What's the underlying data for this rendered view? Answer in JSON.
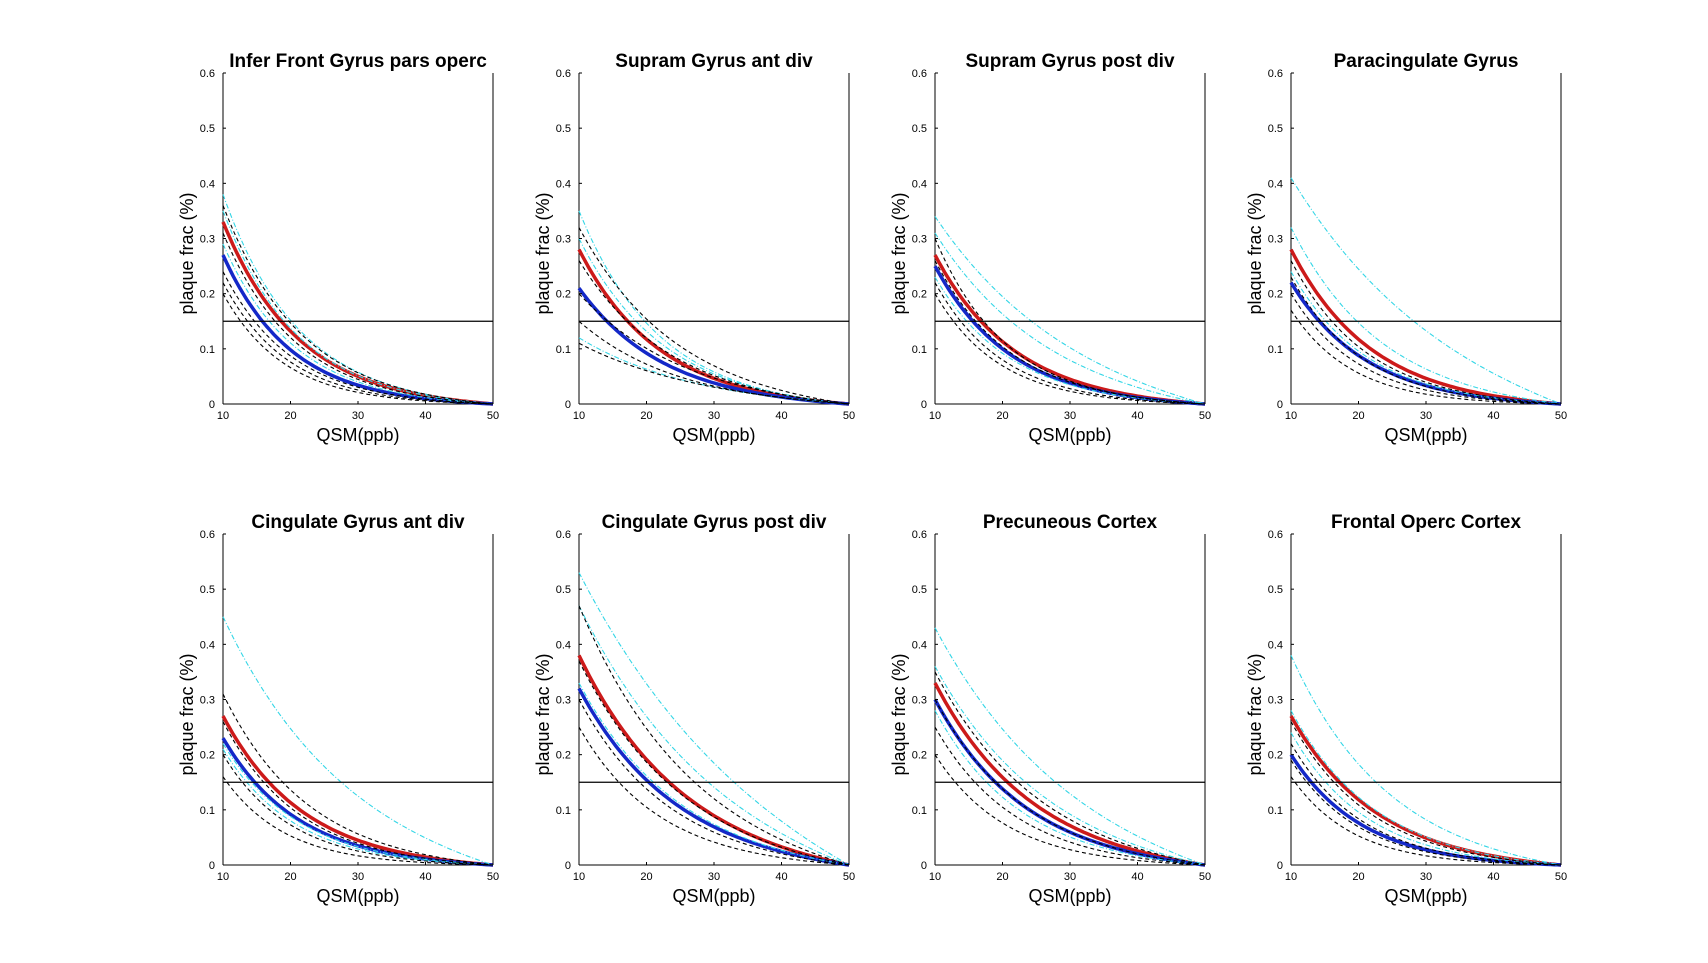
{
  "colors": {
    "red": "#cc1a1a",
    "blue": "#1428c8",
    "cyan": "#33d6e6",
    "black": "#000000"
  },
  "chart_data": [
    {
      "type": "line",
      "title": "Infer Front Gyrus pars operc",
      "xlabel": "QSM(ppb)",
      "ylabel": "plaque frac (%)",
      "xlim": [
        10,
        50
      ],
      "ylim": [
        0,
        0.6
      ],
      "xticks": [
        "10",
        "20",
        "30",
        "40",
        "50"
      ],
      "yticks": [
        "0",
        "0.1",
        "0.2",
        "0.3",
        "0.4",
        "0.5",
        "0.6"
      ],
      "threshold": 0.15,
      "series": [
        {
          "name": "red",
          "start": 0.33,
          "decay": 0.09,
          "color": "#cc1a1a"
        },
        {
          "name": "blue",
          "start": 0.27,
          "decay": 0.1,
          "color": "#1428c8"
        },
        {
          "name": "cyan-1",
          "start": 0.38,
          "decay": 0.09,
          "color": "#33d6e6"
        },
        {
          "name": "cyan-2",
          "start": 0.35,
          "decay": 0.092,
          "color": "#33d6e6"
        },
        {
          "name": "cyan-3",
          "start": 0.29,
          "decay": 0.095,
          "color": "#33d6e6"
        },
        {
          "name": "black-1",
          "start": 0.36,
          "decay": 0.088,
          "color": "#000000"
        },
        {
          "name": "black-2",
          "start": 0.31,
          "decay": 0.093,
          "color": "#000000"
        },
        {
          "name": "black-3",
          "start": 0.24,
          "decay": 0.1,
          "color": "#000000"
        },
        {
          "name": "black-4",
          "start": 0.22,
          "decay": 0.105,
          "color": "#000000"
        },
        {
          "name": "black-5",
          "start": 0.2,
          "decay": 0.11,
          "color": "#000000"
        }
      ]
    },
    {
      "type": "line",
      "title": "Supram Gyrus ant div",
      "xlabel": "QSM(ppb)",
      "ylabel": "plaque frac (%)",
      "xlim": [
        10,
        50
      ],
      "ylim": [
        0,
        0.6
      ],
      "xticks": [
        "10",
        "20",
        "30",
        "40",
        "50"
      ],
      "yticks": [
        "0",
        "0.1",
        "0.2",
        "0.3",
        "0.4",
        "0.5",
        "0.6"
      ],
      "threshold": 0.15,
      "series": [
        {
          "name": "red",
          "start": 0.28,
          "decay": 0.085,
          "color": "#cc1a1a"
        },
        {
          "name": "blue",
          "start": 0.21,
          "decay": 0.08,
          "color": "#1428c8"
        },
        {
          "name": "cyan-1",
          "start": 0.35,
          "decay": 0.085,
          "color": "#33d6e6"
        },
        {
          "name": "cyan-2",
          "start": 0.3,
          "decay": 0.08,
          "color": "#33d6e6"
        },
        {
          "name": "cyan-3",
          "start": 0.12,
          "decay": 0.06,
          "color": "#33d6e6"
        },
        {
          "name": "black-1",
          "start": 0.32,
          "decay": 0.07,
          "color": "#000000"
        },
        {
          "name": "black-2",
          "start": 0.26,
          "decay": 0.075,
          "color": "#000000"
        },
        {
          "name": "black-3",
          "start": 0.2,
          "decay": 0.065,
          "color": "#000000"
        },
        {
          "name": "black-4",
          "start": 0.15,
          "decay": 0.07,
          "color": "#000000"
        },
        {
          "name": "black-5",
          "start": 0.11,
          "decay": 0.055,
          "color": "#000000"
        }
      ]
    },
    {
      "type": "line",
      "title": "Supram Gyrus post div",
      "xlabel": "QSM(ppb)",
      "ylabel": "plaque frac (%)",
      "xlim": [
        10,
        50
      ],
      "ylim": [
        0,
        0.6
      ],
      "xticks": [
        "10",
        "20",
        "30",
        "40",
        "50"
      ],
      "yticks": [
        "0",
        "0.1",
        "0.2",
        "0.3",
        "0.4",
        "0.5",
        "0.6"
      ],
      "threshold": 0.15,
      "series": [
        {
          "name": "red",
          "start": 0.27,
          "decay": 0.085,
          "color": "#cc1a1a"
        },
        {
          "name": "blue",
          "start": 0.25,
          "decay": 0.09,
          "color": "#1428c8"
        },
        {
          "name": "cyan-1",
          "start": 0.34,
          "decay": 0.05,
          "color": "#33d6e6"
        },
        {
          "name": "cyan-2",
          "start": 0.31,
          "decay": 0.06,
          "color": "#33d6e6"
        },
        {
          "name": "cyan-3",
          "start": 0.23,
          "decay": 0.09,
          "color": "#33d6e6"
        },
        {
          "name": "black-1",
          "start": 0.3,
          "decay": 0.095,
          "color": "#000000"
        },
        {
          "name": "black-2",
          "start": 0.26,
          "decay": 0.09,
          "color": "#000000"
        },
        {
          "name": "black-3",
          "start": 0.22,
          "decay": 0.1,
          "color": "#000000"
        },
        {
          "name": "black-4",
          "start": 0.2,
          "decay": 0.105,
          "color": "#000000"
        }
      ]
    },
    {
      "type": "line",
      "title": "Paracingulate Gyrus",
      "xlabel": "QSM(ppb)",
      "ylabel": "plaque frac (%)",
      "xlim": [
        10,
        50
      ],
      "ylim": [
        0,
        0.6
      ],
      "xticks": [
        "10",
        "20",
        "30",
        "40",
        "50"
      ],
      "yticks": [
        "0",
        "0.1",
        "0.2",
        "0.3",
        "0.4",
        "0.5",
        "0.6"
      ],
      "threshold": 0.15,
      "series": [
        {
          "name": "red",
          "start": 0.28,
          "decay": 0.085,
          "color": "#cc1a1a"
        },
        {
          "name": "blue",
          "start": 0.22,
          "decay": 0.09,
          "color": "#1428c8"
        },
        {
          "name": "cyan-1",
          "start": 0.41,
          "decay": 0.045,
          "color": "#33d6e6"
        },
        {
          "name": "cyan-2",
          "start": 0.32,
          "decay": 0.075,
          "color": "#33d6e6"
        },
        {
          "name": "cyan-3",
          "start": 0.24,
          "decay": 0.09,
          "color": "#33d6e6"
        },
        {
          "name": "black-1",
          "start": 0.26,
          "decay": 0.09,
          "color": "#000000"
        },
        {
          "name": "black-2",
          "start": 0.23,
          "decay": 0.095,
          "color": "#000000"
        },
        {
          "name": "black-3",
          "start": 0.2,
          "decay": 0.1,
          "color": "#000000"
        },
        {
          "name": "black-4",
          "start": 0.17,
          "decay": 0.11,
          "color": "#000000"
        }
      ]
    },
    {
      "type": "line",
      "title": "Cingulate Gyrus ant div",
      "xlabel": "QSM(ppb)",
      "ylabel": "plaque frac (%)",
      "xlim": [
        10,
        50
      ],
      "ylim": [
        0,
        0.6
      ],
      "xticks": [
        "10",
        "20",
        "30",
        "40",
        "50"
      ],
      "yticks": [
        "0",
        "0.1",
        "0.2",
        "0.3",
        "0.4",
        "0.5",
        "0.6"
      ],
      "threshold": 0.15,
      "series": [
        {
          "name": "red",
          "start": 0.27,
          "decay": 0.085,
          "color": "#cc1a1a"
        },
        {
          "name": "blue",
          "start": 0.23,
          "decay": 0.09,
          "color": "#1428c8"
        },
        {
          "name": "cyan-1",
          "start": 0.45,
          "decay": 0.055,
          "color": "#33d6e6"
        },
        {
          "name": "cyan-2",
          "start": 0.22,
          "decay": 0.09,
          "color": "#33d6e6"
        },
        {
          "name": "cyan-3",
          "start": 0.21,
          "decay": 0.095,
          "color": "#33d6e6"
        },
        {
          "name": "black-1",
          "start": 0.31,
          "decay": 0.08,
          "color": "#000000"
        },
        {
          "name": "black-2",
          "start": 0.26,
          "decay": 0.09,
          "color": "#000000"
        },
        {
          "name": "black-3",
          "start": 0.2,
          "decay": 0.1,
          "color": "#000000"
        },
        {
          "name": "black-4",
          "start": 0.16,
          "decay": 0.11,
          "color": "#000000"
        }
      ]
    },
    {
      "type": "line",
      "title": "Cingulate Gyrus post div",
      "xlabel": "QSM(ppb)",
      "ylabel": "plaque frac (%)",
      "xlim": [
        10,
        50
      ],
      "ylim": [
        0,
        0.6
      ],
      "xticks": [
        "10",
        "20",
        "30",
        "40",
        "50"
      ],
      "yticks": [
        "0",
        "0.1",
        "0.2",
        "0.3",
        "0.4",
        "0.5",
        "0.6"
      ],
      "threshold": 0.15,
      "series": [
        {
          "name": "red",
          "start": 0.38,
          "decay": 0.065,
          "color": "#cc1a1a"
        },
        {
          "name": "blue",
          "start": 0.32,
          "decay": 0.07,
          "color": "#1428c8"
        },
        {
          "name": "cyan-1",
          "start": 0.53,
          "decay": 0.04,
          "color": "#33d6e6"
        },
        {
          "name": "cyan-2",
          "start": 0.47,
          "decay": 0.05,
          "color": "#33d6e6"
        },
        {
          "name": "cyan-3",
          "start": 0.33,
          "decay": 0.068,
          "color": "#33d6e6"
        },
        {
          "name": "black-1",
          "start": 0.47,
          "decay": 0.06,
          "color": "#000000"
        },
        {
          "name": "black-2",
          "start": 0.37,
          "decay": 0.065,
          "color": "#000000"
        },
        {
          "name": "black-3",
          "start": 0.3,
          "decay": 0.075,
          "color": "#000000"
        },
        {
          "name": "black-4",
          "start": 0.25,
          "decay": 0.085,
          "color": "#000000"
        }
      ]
    },
    {
      "type": "line",
      "title": "Precuneous Cortex",
      "xlabel": "QSM(ppb)",
      "ylabel": "plaque frac (%)",
      "xlim": [
        10,
        50
      ],
      "ylim": [
        0,
        0.6
      ],
      "xticks": [
        "10",
        "20",
        "30",
        "40",
        "50"
      ],
      "yticks": [
        "0",
        "0.1",
        "0.2",
        "0.3",
        "0.4",
        "0.5",
        "0.6"
      ],
      "threshold": 0.15,
      "series": [
        {
          "name": "red",
          "start": 0.33,
          "decay": 0.07,
          "color": "#cc1a1a"
        },
        {
          "name": "blue",
          "start": 0.3,
          "decay": 0.075,
          "color": "#1428c8"
        },
        {
          "name": "cyan-1",
          "start": 0.43,
          "decay": 0.05,
          "color": "#33d6e6"
        },
        {
          "name": "cyan-2",
          "start": 0.36,
          "decay": 0.06,
          "color": "#33d6e6"
        },
        {
          "name": "cyan-3",
          "start": 0.28,
          "decay": 0.08,
          "color": "#33d6e6"
        },
        {
          "name": "black-1",
          "start": 0.35,
          "decay": 0.065,
          "color": "#000000"
        },
        {
          "name": "black-2",
          "start": 0.3,
          "decay": 0.075,
          "color": "#000000"
        },
        {
          "name": "black-3",
          "start": 0.25,
          "decay": 0.085,
          "color": "#000000"
        },
        {
          "name": "black-4",
          "start": 0.2,
          "decay": 0.095,
          "color": "#000000"
        }
      ]
    },
    {
      "type": "line",
      "title": "Frontal Operc Cortex",
      "xlabel": "QSM(ppb)",
      "ylabel": "plaque frac (%)",
      "xlim": [
        10,
        50
      ],
      "ylim": [
        0,
        0.6
      ],
      "xticks": [
        "10",
        "20",
        "30",
        "40",
        "50"
      ],
      "yticks": [
        "0",
        "0.1",
        "0.2",
        "0.3",
        "0.4",
        "0.5",
        "0.6"
      ],
      "threshold": 0.15,
      "series": [
        {
          "name": "red",
          "start": 0.27,
          "decay": 0.08,
          "color": "#cc1a1a"
        },
        {
          "name": "blue",
          "start": 0.2,
          "decay": 0.095,
          "color": "#1428c8"
        },
        {
          "name": "cyan-1",
          "start": 0.38,
          "decay": 0.07,
          "color": "#33d6e6"
        },
        {
          "name": "cyan-2",
          "start": 0.28,
          "decay": 0.08,
          "color": "#33d6e6"
        },
        {
          "name": "cyan-3",
          "start": 0.24,
          "decay": 0.09,
          "color": "#33d6e6"
        },
        {
          "name": "black-1",
          "start": 0.26,
          "decay": 0.085,
          "color": "#000000"
        },
        {
          "name": "black-2",
          "start": 0.22,
          "decay": 0.095,
          "color": "#000000"
        },
        {
          "name": "black-3",
          "start": 0.19,
          "decay": 0.1,
          "color": "#000000"
        },
        {
          "name": "black-4",
          "start": 0.16,
          "decay": 0.11,
          "color": "#000000"
        }
      ]
    }
  ]
}
